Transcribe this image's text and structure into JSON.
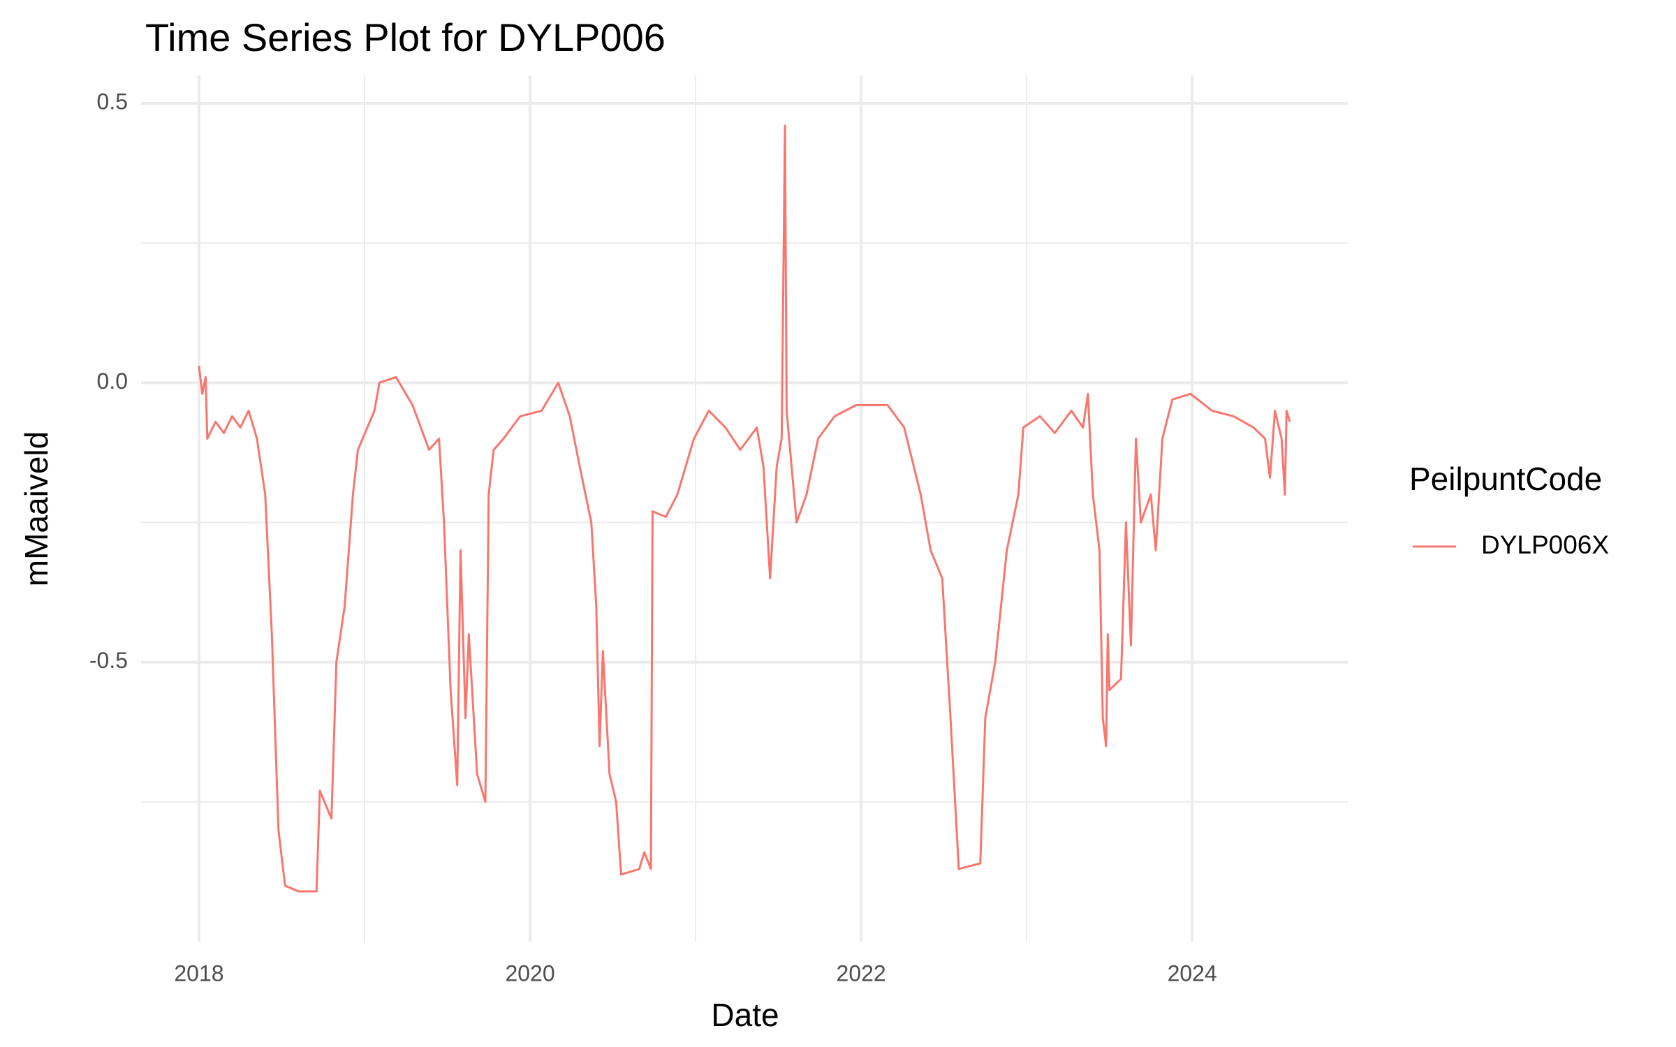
{
  "chart_data": {
    "type": "line",
    "title": "Time Series Plot for DYLP006",
    "x_label": "Date",
    "y_label": "mMaaiveld",
    "legend_title": "PeilpuntCode",
    "legend_position": "right",
    "xlim": [
      2017.65,
      2024.94
    ],
    "xticks": [
      2018,
      2020,
      2022,
      2024
    ],
    "xminor_ticks": [
      2019,
      2021,
      2023
    ],
    "ylim": [
      -1.0,
      0.55
    ],
    "yticks": [
      {
        "value": -0.5,
        "label": "-0.5"
      },
      {
        "value": 0,
        "label": "0.0"
      },
      {
        "value": 0.5,
        "label": "0.5"
      }
    ],
    "yminor_ticks": [
      -0.75,
      -0.25,
      0.25
    ],
    "grid": true,
    "x": [
      2018.0,
      2018.02,
      2018.04,
      2018.05,
      2018.1,
      2018.15,
      2018.2,
      2018.25,
      2018.3,
      2018.35,
      2018.4,
      2018.44,
      2018.48,
      2018.52,
      2018.6,
      2018.71,
      2018.73,
      2018.8,
      2018.83,
      2018.88,
      2018.93,
      2018.96,
      2019.06,
      2019.09,
      2019.19,
      2019.29,
      2019.39,
      2019.45,
      2019.48,
      2019.52,
      2019.56,
      2019.58,
      2019.61,
      2019.63,
      2019.68,
      2019.73,
      2019.75,
      2019.78,
      2019.84,
      2019.94,
      2020.07,
      2020.17,
      2020.24,
      2020.3,
      2020.37,
      2020.4,
      2020.42,
      2020.44,
      2020.48,
      2020.52,
      2020.55,
      2020.66,
      2020.69,
      2020.73,
      2020.74,
      2020.82,
      2020.89,
      2020.99,
      2021.08,
      2021.18,
      2021.27,
      2021.37,
      2021.41,
      2021.45,
      2021.49,
      2021.52,
      2021.54,
      2021.55,
      2021.61,
      2021.67,
      2021.74,
      2021.84,
      2021.97,
      2022.16,
      2022.26,
      2022.36,
      2022.42,
      2022.49,
      2022.54,
      2022.59,
      2022.72,
      2022.75,
      2022.81,
      2022.88,
      2022.95,
      2022.98,
      2023.08,
      2023.17,
      2023.27,
      2023.34,
      2023.37,
      2023.4,
      2023.44,
      2023.46,
      2023.48,
      2023.49,
      2023.5,
      2023.57,
      2023.6,
      2023.63,
      2023.66,
      2023.69,
      2023.75,
      2023.78,
      2023.82,
      2023.88,
      2023.99,
      2024.12,
      2024.25,
      2024.37,
      2024.44,
      2024.47,
      2024.5,
      2024.54,
      2024.56,
      2024.57,
      2024.59
    ],
    "series": [
      {
        "name": "DYLP006X",
        "color": "#F8766D",
        "values": [
          0.03,
          -0.02,
          0.01,
          -0.1,
          -0.07,
          -0.09,
          -0.06,
          -0.08,
          -0.05,
          -0.1,
          -0.2,
          -0.45,
          -0.8,
          -0.9,
          -0.91,
          -0.91,
          -0.73,
          -0.78,
          -0.5,
          -0.4,
          -0.2,
          -0.12,
          -0.05,
          0.0,
          0.01,
          -0.04,
          -0.12,
          -0.1,
          -0.25,
          -0.55,
          -0.72,
          -0.3,
          -0.6,
          -0.45,
          -0.7,
          -0.75,
          -0.2,
          -0.12,
          -0.1,
          -0.06,
          -0.05,
          0.0,
          -0.06,
          -0.15,
          -0.25,
          -0.4,
          -0.65,
          -0.48,
          -0.7,
          -0.75,
          -0.88,
          -0.87,
          -0.84,
          -0.87,
          -0.23,
          -0.24,
          -0.2,
          -0.1,
          -0.05,
          -0.08,
          -0.12,
          -0.08,
          -0.15,
          -0.35,
          -0.15,
          -0.1,
          0.46,
          -0.05,
          -0.25,
          -0.2,
          -0.1,
          -0.06,
          -0.04,
          -0.04,
          -0.08,
          -0.2,
          -0.3,
          -0.35,
          -0.6,
          -0.87,
          -0.86,
          -0.6,
          -0.5,
          -0.3,
          -0.2,
          -0.08,
          -0.06,
          -0.09,
          -0.05,
          -0.08,
          -0.02,
          -0.2,
          -0.3,
          -0.6,
          -0.65,
          -0.45,
          -0.55,
          -0.53,
          -0.25,
          -0.47,
          -0.1,
          -0.25,
          -0.2,
          -0.3,
          -0.1,
          -0.03,
          -0.02,
          -0.05,
          -0.06,
          -0.08,
          -0.1,
          -0.17,
          -0.05,
          -0.1,
          -0.2,
          -0.05,
          -0.07
        ]
      }
    ]
  }
}
